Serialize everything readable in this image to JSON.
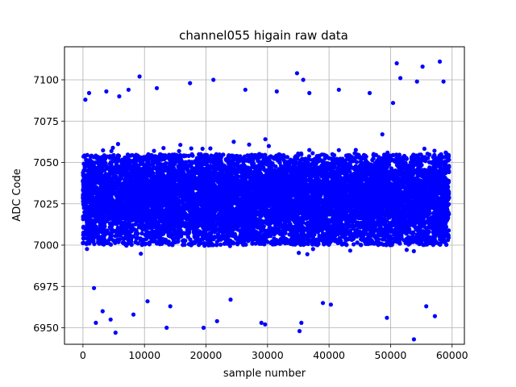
{
  "chart_data": {
    "type": "scatter",
    "title": "channel055 higain raw data",
    "xlabel": "sample number",
    "ylabel": "ADC Code",
    "xlim": [
      -3000,
      62000
    ],
    "ylim": [
      6940,
      7120
    ],
    "xticks": [
      0,
      10000,
      20000,
      30000,
      40000,
      50000,
      60000
    ],
    "xtick_labels": [
      "0",
      "10000",
      "20000",
      "30000",
      "40000",
      "50000",
      "60000"
    ],
    "yticks": [
      6950,
      6975,
      7000,
      7025,
      7050,
      7075,
      7100
    ],
    "ytick_labels": [
      "6950",
      "6975",
      "7000",
      "7025",
      "7050",
      "7075",
      "7100"
    ],
    "grid": true,
    "marker_color": "#0000ff",
    "series": [
      {
        "n_samples": 59500,
        "x_range": [
          0,
          59500
        ],
        "dense_band": [
          7000,
          7055
        ],
        "outliers": [
          {
            "x": 400,
            "y": 7088
          },
          {
            "x": 1000,
            "y": 7092
          },
          {
            "x": 1800,
            "y": 6974
          },
          {
            "x": 2100,
            "y": 6953
          },
          {
            "x": 3200,
            "y": 6960
          },
          {
            "x": 3800,
            "y": 7093
          },
          {
            "x": 4500,
            "y": 6955
          },
          {
            "x": 5300,
            "y": 6947
          },
          {
            "x": 5900,
            "y": 7090
          },
          {
            "x": 7400,
            "y": 7094
          },
          {
            "x": 8200,
            "y": 6958
          },
          {
            "x": 9200,
            "y": 7102
          },
          {
            "x": 10500,
            "y": 6966
          },
          {
            "x": 12000,
            "y": 7095
          },
          {
            "x": 13600,
            "y": 6950
          },
          {
            "x": 14200,
            "y": 6963
          },
          {
            "x": 17400,
            "y": 7098
          },
          {
            "x": 19600,
            "y": 6950
          },
          {
            "x": 21200,
            "y": 7100
          },
          {
            "x": 21800,
            "y": 6954
          },
          {
            "x": 24000,
            "y": 6967
          },
          {
            "x": 26400,
            "y": 7094
          },
          {
            "x": 29000,
            "y": 6953
          },
          {
            "x": 29600,
            "y": 6952
          },
          {
            "x": 31500,
            "y": 7093
          },
          {
            "x": 34800,
            "y": 7104
          },
          {
            "x": 35200,
            "y": 6948
          },
          {
            "x": 35500,
            "y": 6953
          },
          {
            "x": 35800,
            "y": 7100
          },
          {
            "x": 36800,
            "y": 7092
          },
          {
            "x": 39000,
            "y": 6965
          },
          {
            "x": 40300,
            "y": 6964
          },
          {
            "x": 41600,
            "y": 7094
          },
          {
            "x": 46600,
            "y": 7092
          },
          {
            "x": 49400,
            "y": 6956
          },
          {
            "x": 50400,
            "y": 7086
          },
          {
            "x": 51000,
            "y": 7110
          },
          {
            "x": 51600,
            "y": 7101
          },
          {
            "x": 53800,
            "y": 6943
          },
          {
            "x": 54300,
            "y": 7099
          },
          {
            "x": 55200,
            "y": 7108
          },
          {
            "x": 55800,
            "y": 6963
          },
          {
            "x": 57200,
            "y": 6957
          },
          {
            "x": 58000,
            "y": 7111
          },
          {
            "x": 58600,
            "y": 7099
          }
        ]
      }
    ]
  }
}
